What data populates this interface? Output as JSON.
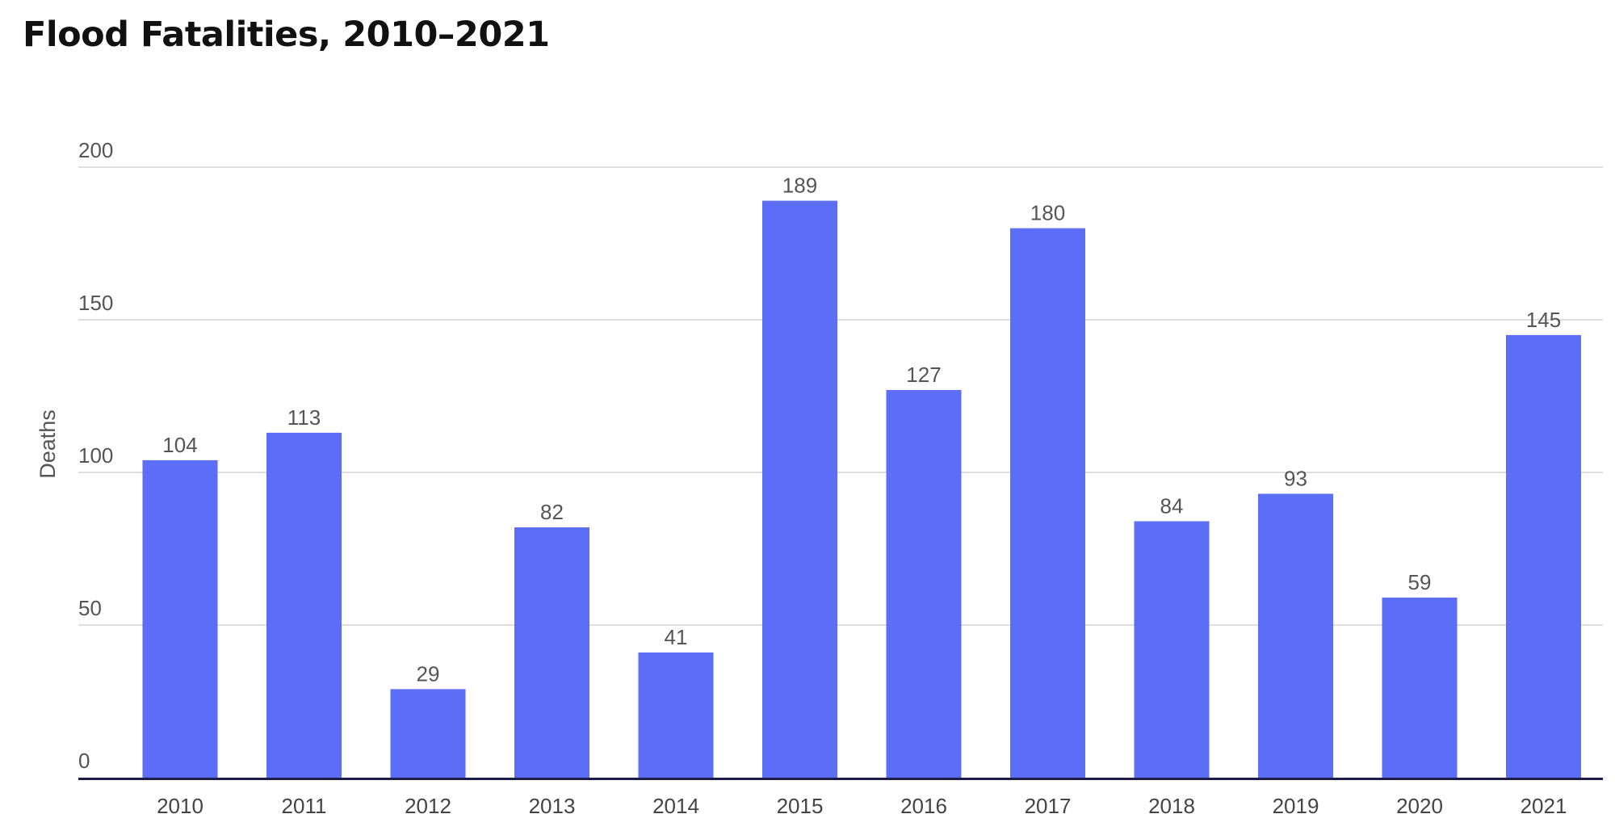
{
  "chart_data": {
    "type": "bar",
    "title": "Flood Fatalities, 2010–2021",
    "xlabel": "",
    "ylabel": "Deaths",
    "categories": [
      "2010",
      "2011",
      "2012",
      "2013",
      "2014",
      "2015",
      "2016",
      "2017",
      "2018",
      "2019",
      "2020",
      "2021"
    ],
    "values": [
      104,
      113,
      29,
      82,
      41,
      189,
      127,
      180,
      84,
      93,
      59,
      145
    ],
    "ylim": [
      0,
      200
    ],
    "yticks": [
      0,
      50,
      100,
      150,
      200
    ],
    "grid": true,
    "legend": "none",
    "data_labels": true,
    "colors": {
      "bar": "#5b6ef5",
      "grid": "#d4d4d4",
      "baseline": "#1c1c4a"
    }
  }
}
